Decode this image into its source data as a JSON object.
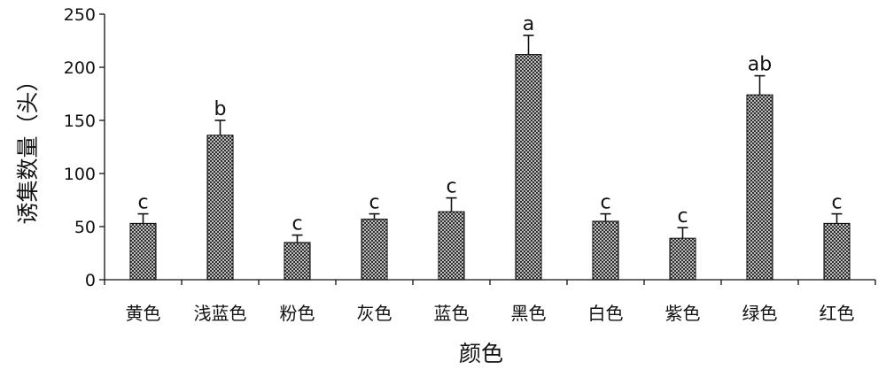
{
  "chart_data": {
    "type": "bar",
    "xlabel": "颜色",
    "ylabel": "诱集数量（头）",
    "ylim": [
      0,
      250
    ],
    "yticks": [
      0,
      50,
      100,
      150,
      200,
      250
    ],
    "grid": false,
    "legend": "none",
    "bar_fill": "crosshatch",
    "colors": {
      "bar_stroke": "#111111",
      "bar_pattern": "#222222",
      "axis": "#111111"
    },
    "categories": [
      "黄色",
      "浅蓝色",
      "粉色",
      "灰色",
      "蓝色",
      "黑色",
      "白色",
      "紫色",
      "绿色",
      "红色"
    ],
    "values": [
      53,
      136,
      35,
      57,
      64,
      212,
      55,
      39,
      174,
      53
    ],
    "errors": [
      9,
      14,
      7,
      5,
      13,
      18,
      7,
      10,
      18,
      9
    ],
    "significance": [
      "c",
      "b",
      "c",
      "c",
      "c",
      "a",
      "c",
      "c",
      "ab",
      "c"
    ]
  }
}
